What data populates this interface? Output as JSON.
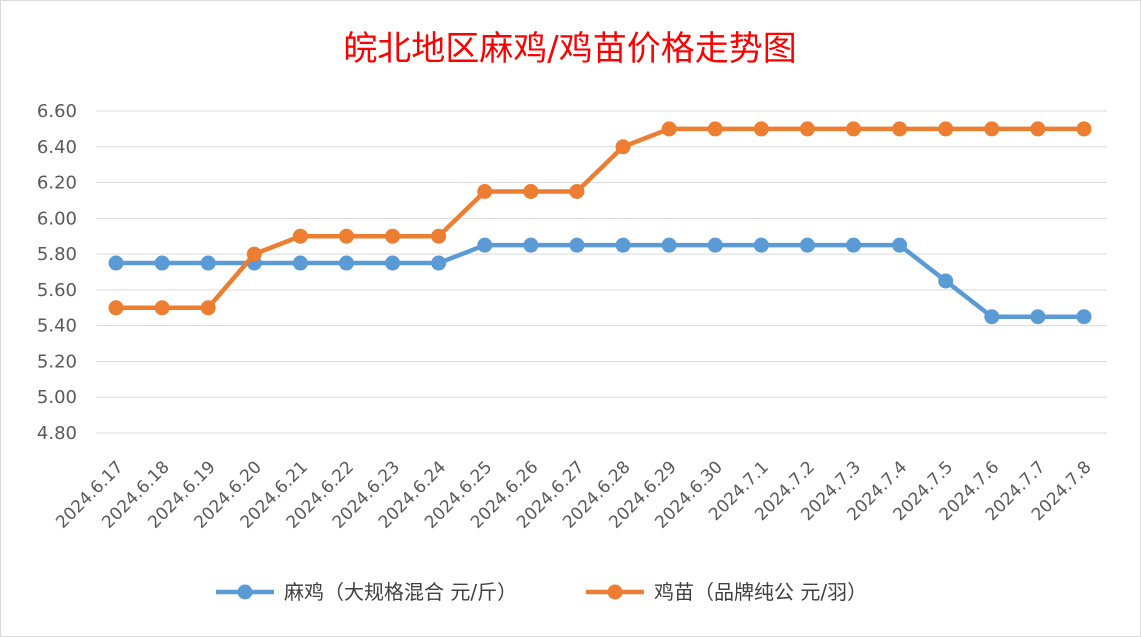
{
  "colors": {
    "title": "#ff0000",
    "grid": "#d9d9d9",
    "tick_text": "#595959",
    "legend_text": "#404040",
    "border": "#bfbfbf"
  },
  "chart_data": {
    "type": "line",
    "title": "皖北地区麻鸡/鸡苗价格走势图",
    "xlabel": "",
    "ylabel": "",
    "categories": [
      "2024.6.17",
      "2024.6.18",
      "2024.6.19",
      "2024.6.20",
      "2024.6.21",
      "2024.6.22",
      "2024.6.23",
      "2024.6.24",
      "2024.6.25",
      "2024.6.26",
      "2024.6.27",
      "2024.6.28",
      "2024.6.29",
      "2024.6.30",
      "2024.7.1",
      "2024.7.2",
      "2024.7.3",
      "2024.7.4",
      "2024.7.5",
      "2024.7.6",
      "2024.7.7",
      "2024.7.8"
    ],
    "ylim": [
      4.8,
      6.6
    ],
    "yticks": [
      "4.80",
      "5.00",
      "5.20",
      "5.40",
      "5.60",
      "5.80",
      "6.00",
      "6.20",
      "6.40",
      "6.60"
    ],
    "grid": true,
    "legend_position": "bottom",
    "series": [
      {
        "name": "麻鸡（大规格混合 元/斤）",
        "color": "#5b9bd5",
        "values": [
          5.75,
          5.75,
          5.75,
          5.75,
          5.75,
          5.75,
          5.75,
          5.75,
          5.85,
          5.85,
          5.85,
          5.85,
          5.85,
          5.85,
          5.85,
          5.85,
          5.85,
          5.85,
          5.65,
          5.45,
          5.45,
          5.45
        ]
      },
      {
        "name": "鸡苗（品牌纯公 元/羽）",
        "color": "#ed7d31",
        "values": [
          5.5,
          5.5,
          5.5,
          5.8,
          5.9,
          5.9,
          5.9,
          5.9,
          6.15,
          6.15,
          6.15,
          6.4,
          6.5,
          6.5,
          6.5,
          6.5,
          6.5,
          6.5,
          6.5,
          6.5,
          6.5,
          6.5
        ]
      }
    ]
  }
}
